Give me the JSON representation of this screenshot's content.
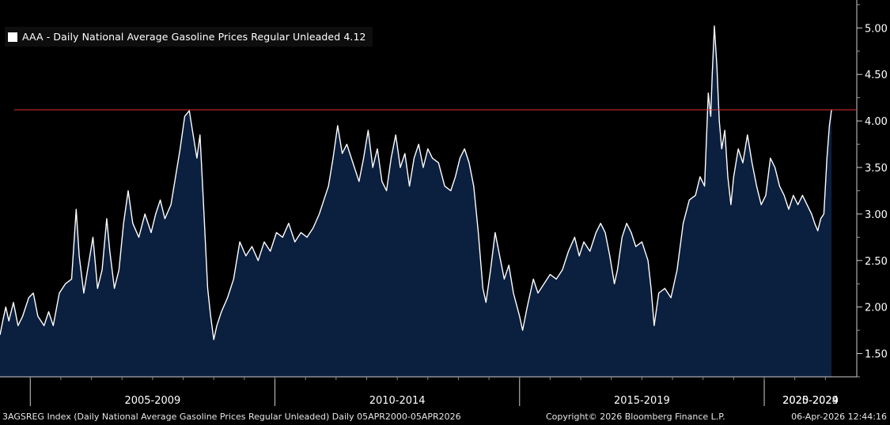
{
  "legend": {
    "label": "AAA - Daily National Average Gasoline Prices Regular Unleaded",
    "last_value": "4.12",
    "swatch_color": "#ffffff"
  },
  "footer": {
    "left": "3AGSREG Index (Daily National Average Gasoline Prices Regular Unleaded) Daily 05APR2000-05APR2026",
    "center": "Copyright© 2026 Bloomberg Finance L.P.",
    "right": "06-Apr-2026 12:44:16"
  },
  "chart_data": {
    "type": "area",
    "series": [
      {
        "color": "#ffffff",
        "fill": "#0b1f3f",
        "points": [
          [
            2000.26,
            1.7
          ],
          [
            2000.35,
            1.85
          ],
          [
            2000.45,
            2.0
          ],
          [
            2000.55,
            1.85
          ],
          [
            2000.7,
            2.05
          ],
          [
            2000.85,
            1.8
          ],
          [
            2001.0,
            1.9
          ],
          [
            2001.2,
            2.1
          ],
          [
            2001.35,
            2.15
          ],
          [
            2001.5,
            1.9
          ],
          [
            2001.7,
            1.8
          ],
          [
            2001.85,
            1.95
          ],
          [
            2002.0,
            1.8
          ],
          [
            2002.2,
            2.15
          ],
          [
            2002.4,
            2.25
          ],
          [
            2002.6,
            2.3
          ],
          [
            2002.75,
            3.05
          ],
          [
            2002.85,
            2.55
          ],
          [
            2003.0,
            2.15
          ],
          [
            2003.15,
            2.45
          ],
          [
            2003.3,
            2.75
          ],
          [
            2003.45,
            2.2
          ],
          [
            2003.6,
            2.4
          ],
          [
            2003.75,
            2.95
          ],
          [
            2003.85,
            2.6
          ],
          [
            2004.0,
            2.2
          ],
          [
            2004.15,
            2.4
          ],
          [
            2004.3,
            2.9
          ],
          [
            2004.45,
            3.25
          ],
          [
            2004.6,
            2.9
          ],
          [
            2004.8,
            2.75
          ],
          [
            2005.0,
            3.0
          ],
          [
            2005.2,
            2.8
          ],
          [
            2005.35,
            3.0
          ],
          [
            2005.5,
            3.15
          ],
          [
            2005.65,
            2.95
          ],
          [
            2005.85,
            3.1
          ],
          [
            2006.0,
            3.4
          ],
          [
            2006.15,
            3.7
          ],
          [
            2006.3,
            4.05
          ],
          [
            2006.45,
            4.11
          ],
          [
            2006.55,
            3.9
          ],
          [
            2006.7,
            3.6
          ],
          [
            2006.8,
            3.85
          ],
          [
            2006.9,
            3.2
          ],
          [
            2007.05,
            2.2
          ],
          [
            2007.15,
            1.9
          ],
          [
            2007.25,
            1.65
          ],
          [
            2007.35,
            1.8
          ],
          [
            2007.5,
            1.95
          ],
          [
            2007.7,
            2.1
          ],
          [
            2007.9,
            2.3
          ],
          [
            2008.1,
            2.7
          ],
          [
            2008.3,
            2.55
          ],
          [
            2008.5,
            2.65
          ],
          [
            2008.7,
            2.5
          ],
          [
            2008.9,
            2.7
          ],
          [
            2009.1,
            2.6
          ],
          [
            2009.3,
            2.8
          ],
          [
            2009.5,
            2.75
          ],
          [
            2009.7,
            2.9
          ],
          [
            2009.9,
            2.7
          ],
          [
            2010.1,
            2.8
          ],
          [
            2010.3,
            2.75
          ],
          [
            2010.5,
            2.85
          ],
          [
            2010.7,
            3.0
          ],
          [
            2010.85,
            3.15
          ],
          [
            2011.0,
            3.3
          ],
          [
            2011.15,
            3.6
          ],
          [
            2011.3,
            3.95
          ],
          [
            2011.45,
            3.65
          ],
          [
            2011.6,
            3.75
          ],
          [
            2011.8,
            3.55
          ],
          [
            2012.0,
            3.35
          ],
          [
            2012.15,
            3.6
          ],
          [
            2012.3,
            3.9
          ],
          [
            2012.45,
            3.5
          ],
          [
            2012.6,
            3.7
          ],
          [
            2012.75,
            3.35
          ],
          [
            2012.9,
            3.25
          ],
          [
            2013.05,
            3.6
          ],
          [
            2013.2,
            3.85
          ],
          [
            2013.35,
            3.5
          ],
          [
            2013.5,
            3.65
          ],
          [
            2013.65,
            3.3
          ],
          [
            2013.8,
            3.6
          ],
          [
            2013.95,
            3.75
          ],
          [
            2014.1,
            3.5
          ],
          [
            2014.25,
            3.7
          ],
          [
            2014.4,
            3.6
          ],
          [
            2014.6,
            3.55
          ],
          [
            2014.8,
            3.3
          ],
          [
            2015.0,
            3.25
          ],
          [
            2015.15,
            3.4
          ],
          [
            2015.3,
            3.6
          ],
          [
            2015.45,
            3.7
          ],
          [
            2015.6,
            3.55
          ],
          [
            2015.75,
            3.3
          ],
          [
            2015.9,
            2.8
          ],
          [
            2016.05,
            2.2
          ],
          [
            2016.15,
            2.05
          ],
          [
            2016.3,
            2.4
          ],
          [
            2016.45,
            2.8
          ],
          [
            2016.6,
            2.55
          ],
          [
            2016.75,
            2.3
          ],
          [
            2016.9,
            2.45
          ],
          [
            2017.05,
            2.15
          ],
          [
            2017.25,
            1.9
          ],
          [
            2017.35,
            1.75
          ],
          [
            2017.5,
            2.0
          ],
          [
            2017.7,
            2.3
          ],
          [
            2017.85,
            2.15
          ],
          [
            2018.05,
            2.25
          ],
          [
            2018.25,
            2.35
          ],
          [
            2018.45,
            2.3
          ],
          [
            2018.65,
            2.4
          ],
          [
            2018.85,
            2.6
          ],
          [
            2019.05,
            2.75
          ],
          [
            2019.2,
            2.55
          ],
          [
            2019.35,
            2.7
          ],
          [
            2019.55,
            2.6
          ],
          [
            2019.75,
            2.8
          ],
          [
            2019.9,
            2.9
          ],
          [
            2020.05,
            2.8
          ],
          [
            2020.2,
            2.55
          ],
          [
            2020.35,
            2.25
          ],
          [
            2020.45,
            2.4
          ],
          [
            2020.6,
            2.75
          ],
          [
            2020.75,
            2.9
          ],
          [
            2020.9,
            2.8
          ],
          [
            2021.05,
            2.65
          ],
          [
            2021.25,
            2.7
          ],
          [
            2021.45,
            2.5
          ],
          [
            2021.55,
            2.2
          ],
          [
            2021.65,
            1.8
          ],
          [
            2021.8,
            2.15
          ],
          [
            2022.0,
            2.2
          ],
          [
            2022.2,
            2.1
          ],
          [
            2022.4,
            2.4
          ],
          [
            2022.6,
            2.9
          ],
          [
            2022.8,
            3.15
          ],
          [
            2023.0,
            3.2
          ],
          [
            2023.15,
            3.4
          ],
          [
            2023.3,
            3.3
          ],
          [
            2023.42,
            4.3
          ],
          [
            2023.5,
            4.05
          ],
          [
            2023.55,
            4.5
          ],
          [
            2023.62,
            5.02
          ],
          [
            2023.7,
            4.6
          ],
          [
            2023.78,
            4.0
          ],
          [
            2023.86,
            3.7
          ],
          [
            2023.96,
            3.9
          ],
          [
            2024.06,
            3.4
          ],
          [
            2024.16,
            3.1
          ],
          [
            2024.25,
            3.4
          ],
          [
            2024.4,
            3.7
          ],
          [
            2024.55,
            3.55
          ],
          [
            2024.7,
            3.85
          ],
          [
            2024.85,
            3.55
          ],
          [
            2025.0,
            3.3
          ],
          [
            2025.15,
            3.1
          ],
          [
            2025.3,
            3.2
          ],
          [
            2025.45,
            3.6
          ],
          [
            2025.6,
            3.5
          ],
          [
            2025.75,
            3.3
          ],
          [
            2025.9,
            3.2
          ],
          [
            2026.05,
            3.05
          ],
          [
            2026.2,
            3.2
          ],
          [
            2026.35,
            3.1
          ],
          [
            2026.5,
            3.2
          ],
          [
            2026.65,
            3.1
          ],
          [
            2026.8,
            3.0
          ],
          [
            2026.9,
            2.9
          ],
          [
            2027.0,
            2.82
          ],
          [
            2027.1,
            2.95
          ],
          [
            2027.2,
            3.0
          ],
          [
            2027.3,
            3.6
          ],
          [
            2027.38,
            3.95
          ],
          [
            2027.45,
            4.12
          ]
        ]
      }
    ],
    "reference_line": {
      "value": 4.12,
      "color": "#e03030"
    },
    "yticks": [
      1.5,
      2.0,
      2.5,
      3.0,
      3.5,
      4.0,
      4.5,
      5.0
    ],
    "ytick_labels": [
      "1.50",
      "2.00",
      "2.50",
      "3.00",
      "3.50",
      "4.00",
      "4.50",
      "5.00"
    ],
    "ylim": [
      1.25,
      5.3
    ],
    "xlim": [
      2000.26,
      2028.25
    ],
    "x_dividers": [
      2001.25,
      2009.25,
      2017.25,
      2025.25
    ],
    "x_groups": [
      {
        "label": "2005-2009",
        "center": 2005.25
      },
      {
        "label": "2010-2014",
        "center": 2013.25
      },
      {
        "label": "2015-2019",
        "center": 2021.25
      },
      {
        "label": "2020-2024",
        "center": 2029.25
      },
      {
        "label": "2025-2029",
        "center": 2037.25
      }
    ],
    "y_axis_position": "right",
    "grid": false,
    "legend_position": "top-left"
  }
}
